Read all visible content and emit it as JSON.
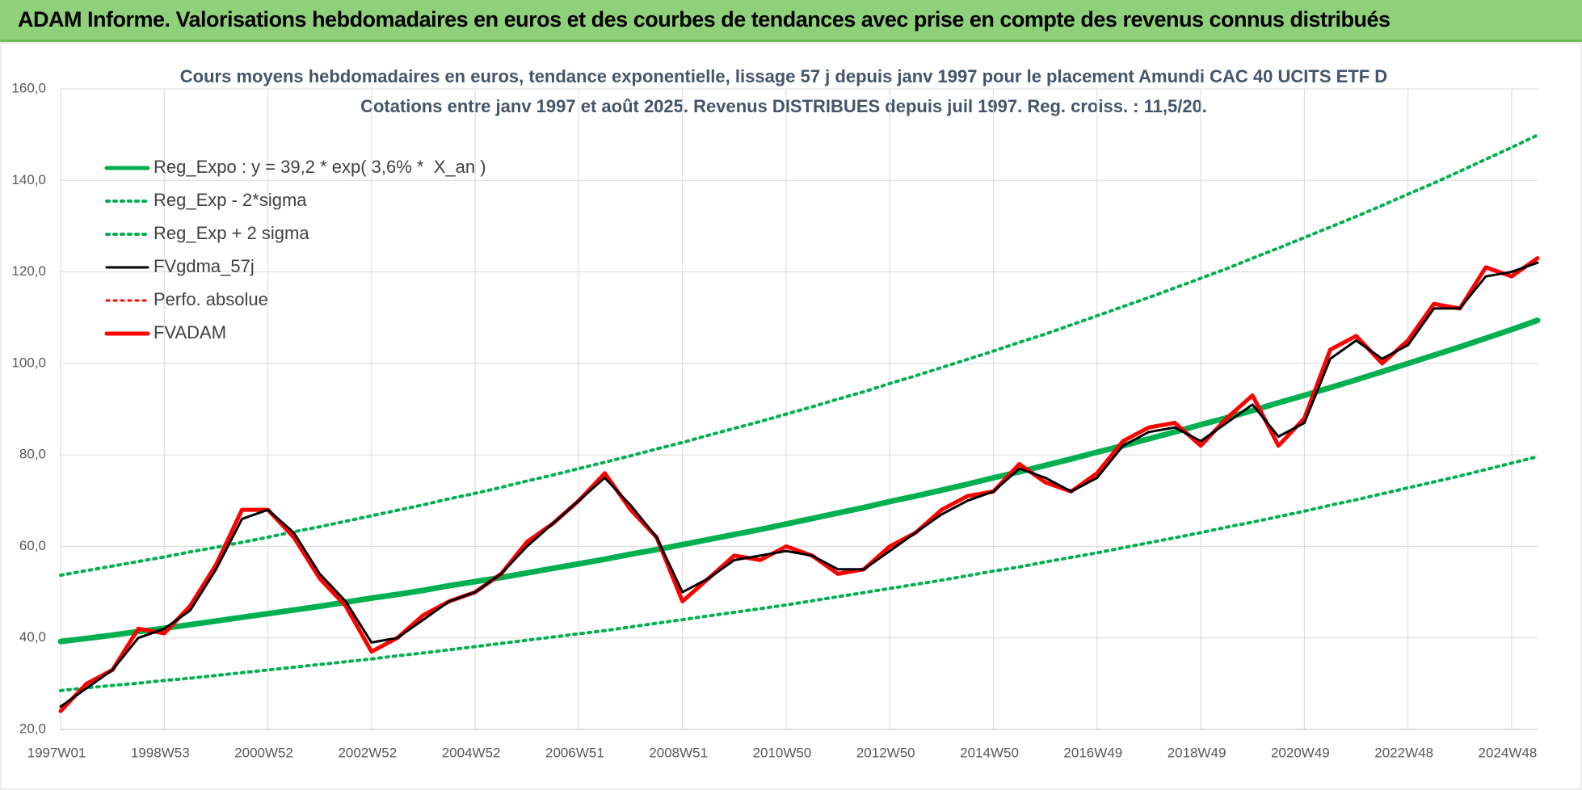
{
  "header": {
    "title": "ADAM Informe. Valorisations hebdomadaires en euros et des courbes de tendances avec prise en compte des revenus connus distribués"
  },
  "chart_data": {
    "type": "line",
    "title": "Cours moyens hebdomadaires en euros, tendance exponentielle, lissage 57 j depuis janv 1997  pour le placement Amundi CAC 40 UCITS ETF D",
    "subtitle": "Cotations entre janv 1997 et août 2025.  Revenus DISTRIBUES depuis juil 1997.  Reg. croiss. : 11,5/20.",
    "categories": [
      "1997W01",
      null,
      null,
      null,
      "1998W53",
      null,
      null,
      null,
      "2000W52",
      null,
      null,
      null,
      "2002W52",
      null,
      null,
      null,
      "2004W52",
      null,
      null,
      null,
      "2006W51",
      null,
      null,
      null,
      "2008W51",
      null,
      null,
      null,
      "2010W50",
      null,
      null,
      null,
      "2012W50",
      null,
      null,
      null,
      "2014W50",
      null,
      null,
      null,
      "2016W49",
      null,
      null,
      null,
      "2018W49",
      null,
      null,
      null,
      "2020W49",
      null,
      null,
      null,
      "2022W48",
      null,
      null,
      null,
      "2024W48",
      null
    ],
    "ylim": [
      20,
      160
    ],
    "yticks": [
      {
        "value": 20,
        "label": "20,0"
      },
      {
        "value": 40,
        "label": "40,0"
      },
      {
        "value": 60,
        "label": "60,0"
      },
      {
        "value": 80,
        "label": "80,0"
      },
      {
        "value": 100,
        "label": "100,0"
      },
      {
        "value": 120,
        "label": "120,0"
      },
      {
        "value": 140,
        "label": "140,0"
      },
      {
        "value": 160,
        "label": "160,0"
      }
    ],
    "grid": true,
    "legend": "upper-left",
    "series": [
      {
        "name": "Reg_Expo : y = 39,2 * exp( 3,6% *  X_an )",
        "color": "#00b050",
        "style": "solid",
        "values": [
          39.2,
          39.9,
          40.6,
          41.4,
          42.1,
          42.9,
          43.7,
          44.5,
          45.3,
          46.1,
          46.9,
          47.8,
          48.7,
          49.5,
          50.4,
          51.4,
          52.3,
          53.2,
          54.2,
          55.2,
          56.2,
          57.2,
          58.3,
          59.3,
          60.4,
          61.5,
          62.6,
          63.7,
          64.9,
          66.1,
          67.3,
          68.5,
          69.8,
          71.0,
          72.3,
          73.6,
          75.0,
          76.3,
          77.7,
          79.1,
          80.6,
          82.0,
          83.5,
          85.0,
          86.6,
          88.1,
          89.7,
          91.4,
          93.0,
          94.7,
          96.4,
          98.2,
          100.0,
          101.8,
          103.6,
          105.5,
          107.4,
          109.4
        ]
      },
      {
        "name": "Reg_Exp - 2*sigma",
        "color": "#00b050",
        "style": "dotted",
        "values": [
          28.5,
          29.1,
          29.6,
          30.1,
          30.7,
          31.2,
          31.8,
          32.4,
          33.0,
          33.6,
          34.2,
          34.8,
          35.4,
          36.1,
          36.7,
          37.4,
          38.1,
          38.8,
          39.5,
          40.2,
          40.9,
          41.6,
          42.4,
          43.2,
          44.0,
          44.8,
          45.6,
          46.4,
          47.2,
          48.1,
          49.0,
          49.9,
          50.8,
          51.7,
          52.6,
          53.6,
          54.6,
          55.5,
          56.6,
          57.6,
          58.6,
          59.7,
          60.8,
          61.9,
          63.0,
          64.2,
          65.3,
          66.5,
          67.7,
          69.0,
          70.2,
          71.5,
          72.8,
          74.1,
          75.4,
          76.8,
          78.2,
          79.6
        ]
      },
      {
        "name": "Reg_Exp + 2 sigma",
        "color": "#00b050",
        "style": "dotted",
        "values": [
          53.7,
          54.7,
          55.7,
          56.7,
          57.7,
          58.8,
          59.8,
          60.9,
          62.0,
          63.2,
          64.3,
          65.5,
          66.7,
          67.9,
          69.1,
          70.4,
          71.6,
          72.9,
          74.3,
          75.6,
          77.0,
          78.4,
          79.8,
          81.3,
          82.7,
          84.3,
          85.8,
          87.3,
          88.9,
          90.5,
          92.2,
          93.8,
          95.6,
          97.3,
          99.1,
          100.9,
          102.7,
          104.6,
          106.4,
          108.4,
          110.4,
          112.4,
          114.4,
          116.5,
          118.6,
          120.7,
          123.0,
          125.2,
          127.5,
          129.8,
          132.1,
          134.5,
          137.0,
          139.4,
          142.0,
          144.6,
          147.2,
          149.9
        ]
      },
      {
        "name": "FVgdma_57j",
        "color": "#000000",
        "style": "solid",
        "values": [
          25,
          29,
          33,
          40,
          42,
          46,
          55,
          66,
          68,
          63,
          54,
          48,
          39,
          40,
          44,
          48,
          50,
          54,
          60,
          65,
          70,
          75,
          69,
          62,
          50,
          53,
          57,
          58,
          59,
          58,
          55,
          55,
          59,
          63,
          67,
          70,
          72,
          77,
          75,
          72,
          75,
          82,
          85,
          86,
          83,
          87,
          91,
          84,
          87,
          101,
          105,
          101,
          104,
          112,
          112,
          119,
          120,
          122
        ]
      },
      {
        "name": "Perfo. absolue",
        "color": "#ff0000",
        "style": "dotted",
        "values": [
          24,
          30,
          33,
          42,
          41,
          47,
          56,
          68,
          68,
          62,
          53,
          47,
          37,
          40,
          45,
          48,
          50,
          54,
          61,
          65,
          70,
          76,
          68,
          62,
          48,
          53,
          58,
          57,
          60,
          58,
          54,
          55,
          60,
          63,
          68,
          71,
          72,
          78,
          74,
          72,
          76,
          83,
          86,
          87,
          82,
          88,
          93,
          82,
          88,
          103,
          106,
          100,
          105,
          113,
          112,
          121,
          119,
          123
        ]
      },
      {
        "name": "FVADAM",
        "color": "#ff0000",
        "style": "solid",
        "values": [
          24,
          30,
          33,
          42,
          41,
          47,
          56,
          68,
          68,
          62,
          53,
          47,
          37,
          40,
          45,
          48,
          50,
          54,
          61,
          65,
          70,
          76,
          68,
          62,
          48,
          53,
          58,
          57,
          60,
          58,
          54,
          55,
          60,
          63,
          68,
          71,
          72,
          78,
          74,
          72,
          76,
          83,
          86,
          87,
          82,
          88,
          93,
          82,
          88,
          103,
          106,
          100,
          105,
          113,
          112,
          121,
          119,
          123
        ]
      }
    ]
  }
}
